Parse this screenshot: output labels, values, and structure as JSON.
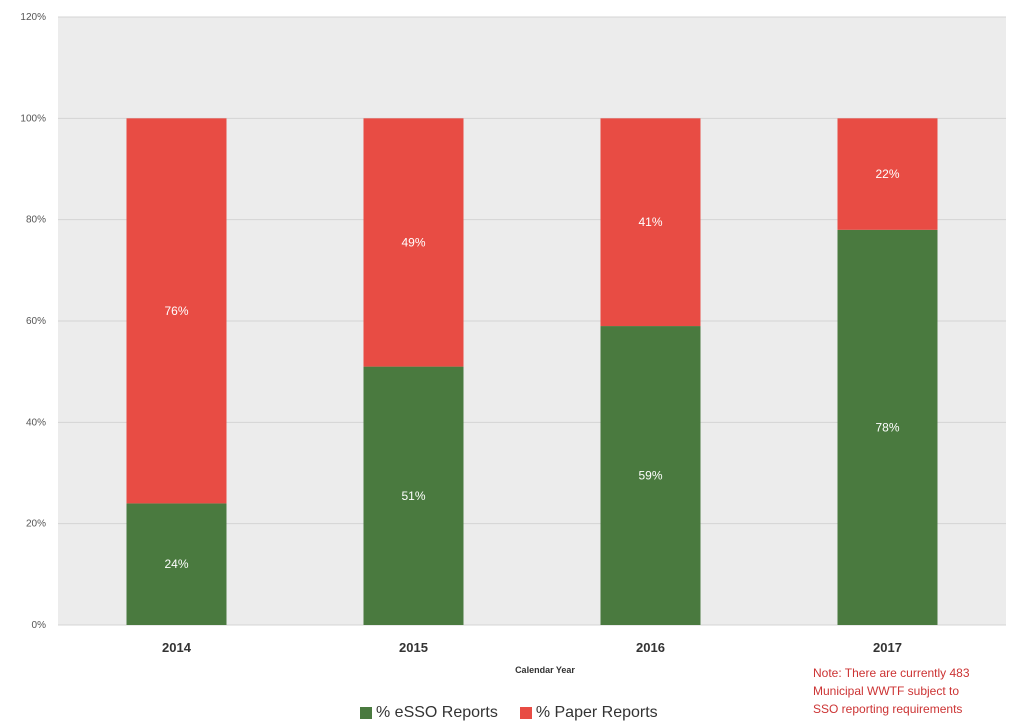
{
  "chart_data": {
    "type": "bar",
    "stacked": true,
    "categories": [
      "2014",
      "2015",
      "2016",
      "2017"
    ],
    "series": [
      {
        "name": "% eSSO Reports",
        "values": [
          24,
          51,
          59,
          78
        ],
        "labels": [
          "24%",
          "51%",
          "59%",
          "78%"
        ],
        "color": "#4a7a3f"
      },
      {
        "name": "% Paper Reports",
        "values": [
          76,
          49,
          41,
          22
        ],
        "labels": [
          "76%",
          "49%",
          "41%",
          "22%"
        ],
        "color": "#e84c44"
      }
    ],
    "xlabel": "Calendar Year",
    "ylabel": "",
    "ylim": [
      0,
      120
    ],
    "yticks": [
      0,
      20,
      40,
      60,
      80,
      100,
      120
    ],
    "ytick_labels": [
      "0%",
      "20%",
      "40%",
      "60%",
      "80%",
      "100%",
      "120%"
    ],
    "grid": true,
    "legend": "bottom"
  },
  "note": {
    "lines": [
      "Note: There are currently 483",
      "Municipal WWTF subject to",
      "SSO reporting requirements"
    ]
  }
}
